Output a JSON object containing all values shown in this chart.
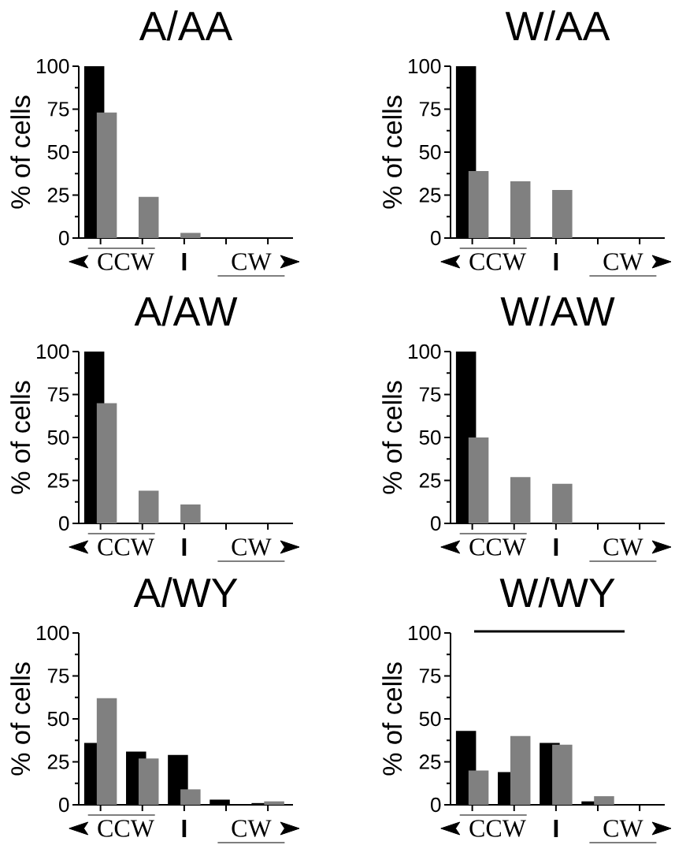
{
  "chart_data": [
    {
      "type": "bar",
      "title": "A/AA",
      "ylabel": "% of cells",
      "categories": [
        null,
        null,
        null,
        null,
        null
      ],
      "ylim": [
        0,
        100
      ],
      "yticks": [
        0,
        25,
        50,
        75,
        100
      ],
      "annotations": [
        "CCW",
        "I",
        "CW"
      ],
      "series": [
        {
          "color": "#000000",
          "values": [
            100,
            0,
            0,
            0,
            0
          ]
        },
        {
          "color": "#808080",
          "values": [
            73,
            24,
            3,
            0,
            0
          ]
        }
      ]
    },
    {
      "type": "bar",
      "title": "W/AA",
      "ylabel": "% of cells",
      "categories": [
        null,
        null,
        null,
        null,
        null
      ],
      "ylim": [
        0,
        100
      ],
      "yticks": [
        0,
        25,
        50,
        75,
        100
      ],
      "annotations": [
        "CCW",
        "I",
        "CW"
      ],
      "series": [
        {
          "color": "#000000",
          "values": [
            100,
            0,
            0,
            0,
            0
          ]
        },
        {
          "color": "#808080",
          "values": [
            39,
            33,
            28,
            0,
            0
          ]
        }
      ]
    },
    {
      "type": "bar",
      "title": "A/AW",
      "ylabel": "% of cells",
      "categories": [
        null,
        null,
        null,
        null,
        null
      ],
      "ylim": [
        0,
        100
      ],
      "yticks": [
        0,
        25,
        50,
        75,
        100
      ],
      "annotations": [
        "CCW",
        "I",
        "CW"
      ],
      "series": [
        {
          "color": "#000000",
          "values": [
            100,
            0,
            0,
            0,
            0
          ]
        },
        {
          "color": "#808080",
          "values": [
            70,
            19,
            11,
            0,
            0
          ]
        }
      ]
    },
    {
      "type": "bar",
      "title": "W/AW",
      "ylabel": "% of cells",
      "categories": [
        null,
        null,
        null,
        null,
        null
      ],
      "ylim": [
        0,
        100
      ],
      "yticks": [
        0,
        25,
        50,
        75,
        100
      ],
      "annotations": [
        "CCW",
        "I",
        "CW"
      ],
      "series": [
        {
          "color": "#000000",
          "values": [
            100,
            0,
            0,
            0,
            0
          ]
        },
        {
          "color": "#808080",
          "values": [
            50,
            27,
            23,
            0,
            0
          ]
        }
      ]
    },
    {
      "type": "bar",
      "title": "A/WY",
      "ylabel": "% of cells",
      "categories": [
        null,
        null,
        null,
        null,
        null
      ],
      "ylim": [
        0,
        100
      ],
      "yticks": [
        0,
        25,
        50,
        75,
        100
      ],
      "annotations": [
        "CCW",
        "I",
        "CW"
      ],
      "series": [
        {
          "color": "#000000",
          "values": [
            36,
            31,
            29,
            3,
            1
          ]
        },
        {
          "color": "#808080",
          "values": [
            62,
            27,
            9,
            0,
            2
          ]
        }
      ]
    },
    {
      "type": "bar",
      "title": "W/WY",
      "ylabel": "% of cells",
      "categories": [
        null,
        null,
        null,
        null,
        null
      ],
      "ylim": [
        0,
        100
      ],
      "yticks": [
        0,
        25,
        50,
        75,
        100
      ],
      "annotations": [
        "CCW",
        "I",
        "CW"
      ],
      "series": [
        {
          "color": "#000000",
          "values": [
            43,
            19,
            36,
            2,
            0
          ]
        },
        {
          "color": "#808080",
          "values": [
            20,
            40,
            35,
            5,
            0
          ]
        }
      ]
    }
  ]
}
